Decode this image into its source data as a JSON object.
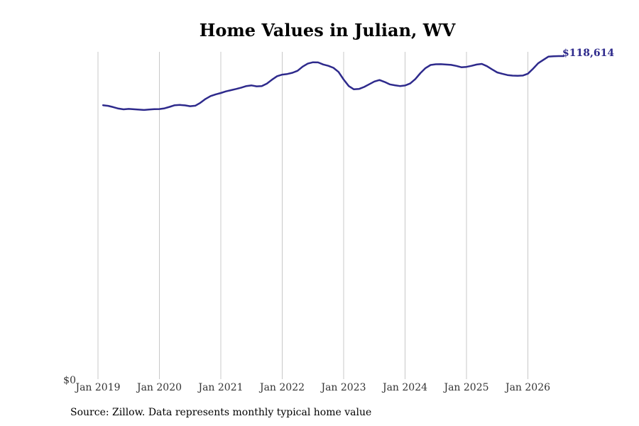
{
  "chart_data": {
    "type": "line",
    "title": "Home Values in Julian, WV",
    "xlabel": "",
    "ylabel": "",
    "ylim": [
      0,
      118614
    ],
    "y_tick_labels": [
      "$0"
    ],
    "x_tick_labels": [
      "Jan 2019",
      "Jan 2020",
      "Jan 2021",
      "Jan 2022",
      "Jan 2023",
      "Jan 2024",
      "Jan 2025",
      "Jan 2026"
    ],
    "grid": "vertical",
    "line_color": "#2e2a8c",
    "end_label": "$118,614",
    "series": [
      {
        "x_start": "2019-02",
        "frequency": "monthly",
        "values": [
          100580,
          100350,
          99860,
          99350,
          99060,
          99220,
          99100,
          98970,
          98830,
          99010,
          99150,
          99160,
          99420,
          99980,
          100580,
          100690,
          100510,
          100210,
          100390,
          101460,
          102860,
          103930,
          104560,
          105070,
          105660,
          106090,
          106540,
          107050,
          107620,
          107860,
          107510,
          107620,
          108520,
          109970,
          111240,
          111810,
          112040,
          112490,
          113230,
          114760,
          115860,
          116340,
          116300,
          115530,
          115050,
          114300,
          112800,
          110000,
          107600,
          106410,
          106540,
          107280,
          108270,
          109270,
          109830,
          109120,
          108230,
          107900,
          107610,
          107810,
          108560,
          110160,
          112350,
          114210,
          115350,
          115620,
          115640,
          115520,
          115380,
          115020,
          114530,
          114640,
          115050,
          115500,
          115740,
          114900,
          113730,
          112630,
          112130,
          111660,
          111440,
          111360,
          111470,
          112150,
          113960,
          115960,
          117200,
          118410,
          118570,
          118614,
          118614
        ]
      }
    ]
  },
  "source": "Source: Zillow. Data represents monthly typical home value"
}
